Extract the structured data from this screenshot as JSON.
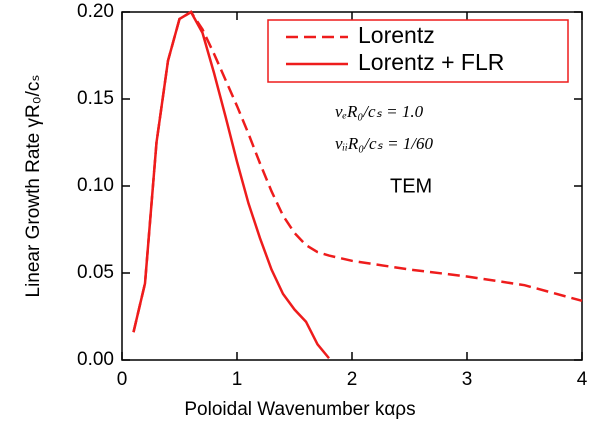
{
  "chart_data": {
    "type": "line",
    "xlabel": "Poloidal Wavenumber  kαρs",
    "ylabel": "Linear Growth Rate  γR₀/cₛ",
    "annotations": [
      "νₑR₀/cₛ = 1.0",
      "νᵢᵢR₀/cₛ = 1/60",
      "TEM"
    ],
    "xlim": [
      0,
      4
    ],
    "xticks": [
      0,
      1,
      2,
      3,
      4
    ],
    "ylim": [
      0,
      0.2
    ],
    "yticks": [
      {
        "value": 0,
        "label": "0.00"
      },
      {
        "value": 0.05,
        "label": "0.05"
      },
      {
        "value": 0.1,
        "label": "0.10"
      },
      {
        "value": 0.15,
        "label": "0.15"
      },
      {
        "value": 0.2,
        "label": "0.20"
      }
    ],
    "legend": "upper right",
    "series": [
      {
        "name": "Lorentz",
        "color": "#ee1c1c",
        "dashed": true,
        "x": [
          0.1,
          0.2,
          0.3,
          0.4,
          0.5,
          0.6,
          0.7,
          0.8,
          0.9,
          1.0,
          1.1,
          1.2,
          1.3,
          1.4,
          1.5,
          1.6,
          1.7,
          1.8,
          2.0,
          2.5,
          3.0,
          3.5,
          4.0
        ],
        "values": [
          0.016,
          0.044,
          0.125,
          0.172,
          0.196,
          0.2,
          0.19,
          0.176,
          0.161,
          0.146,
          0.13,
          0.113,
          0.097,
          0.083,
          0.073,
          0.066,
          0.062,
          0.06,
          0.057,
          0.052,
          0.048,
          0.043,
          0.034
        ]
      },
      {
        "name": "Lorentz + FLR",
        "color": "#ee1c1c",
        "dashed": false,
        "x": [
          0.1,
          0.2,
          0.3,
          0.4,
          0.5,
          0.6,
          0.7,
          0.8,
          0.9,
          1.0,
          1.1,
          1.2,
          1.3,
          1.4,
          1.5,
          1.6,
          1.7,
          1.8
        ],
        "values": [
          0.016,
          0.044,
          0.125,
          0.172,
          0.196,
          0.2,
          0.188,
          0.165,
          0.14,
          0.114,
          0.09,
          0.07,
          0.052,
          0.038,
          0.029,
          0.022,
          0.009,
          0.001
        ]
      }
    ]
  }
}
